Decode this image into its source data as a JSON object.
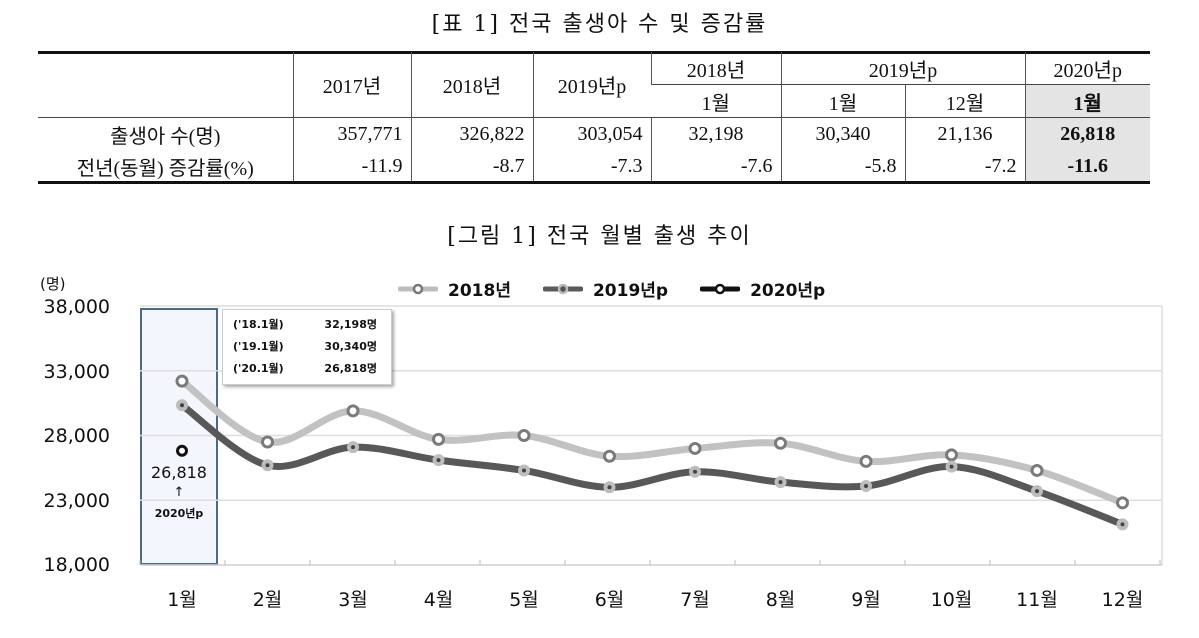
{
  "table": {
    "title": "[표 1] 전국 출생아 수 및 증감률",
    "header_top": [
      "2017년",
      "2018년",
      "2019년p",
      "2018년",
      "2019년p",
      "2020년p"
    ],
    "header_sub": [
      "1월",
      "1월",
      "12월",
      "1월"
    ],
    "rows": [
      {
        "label": "출생아 수(명)",
        "values": [
          "357,771",
          "326,822",
          "303,054",
          "32,198",
          "30,340",
          "21,136",
          "26,818"
        ]
      },
      {
        "label": "전년(동월) 증감률(%)",
        "values": [
          "-11.9",
          "-8.7",
          "-7.3",
          "-7.6",
          "-5.8",
          "-7.2",
          "-11.6"
        ]
      }
    ]
  },
  "figure": {
    "title": "[그림 1] 전국 월별 출생 추이",
    "unit": "(명)",
    "callout": [
      {
        "label": "('18.1월)",
        "value": "32,198명"
      },
      {
        "label": "('19.1월)",
        "value": "30,340명"
      },
      {
        "label": "('20.1월)",
        "value": "26,818명"
      }
    ],
    "highlight_value": "26,818",
    "highlight_arrow": "↑",
    "highlight_label": "2020년p"
  },
  "chart_data": {
    "type": "line",
    "title": "[그림 1] 전국 월별 출생 추이",
    "xlabel": "",
    "ylabel": "(명)",
    "ylim": [
      18000,
      38000
    ],
    "yticks": [
      "38,000",
      "33,000",
      "28,000",
      "23,000",
      "18,000"
    ],
    "categories": [
      "1월",
      "2월",
      "3월",
      "4월",
      "5월",
      "6월",
      "7월",
      "8월",
      "9월",
      "10월",
      "11월",
      "12월"
    ],
    "series": [
      {
        "name": "2018년",
        "color": "#bdbdbd",
        "values": [
          32198,
          27500,
          29900,
          27700,
          28000,
          26400,
          27000,
          27400,
          26000,
          26500,
          25300,
          22800
        ]
      },
      {
        "name": "2019년p",
        "color": "#5a5a5a",
        "values": [
          30340,
          25700,
          27100,
          26100,
          25300,
          24000,
          25200,
          24400,
          24100,
          25600,
          23700,
          21136
        ]
      },
      {
        "name": "2020년p",
        "color": "#111111",
        "values": [
          26818
        ]
      }
    ],
    "grid": true,
    "legend_position": "top"
  }
}
